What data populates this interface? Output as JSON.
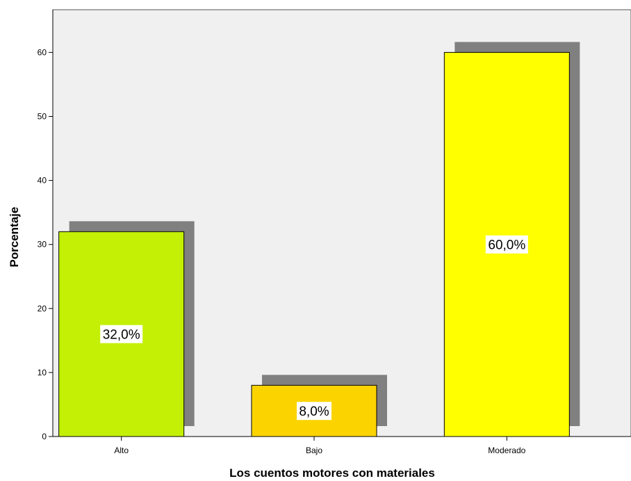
{
  "chart_data": {
    "type": "bar",
    "title": "",
    "xlabel": "Los cuentos motores con materiales",
    "ylabel": "Porcentaje",
    "categories": [
      "Alto",
      "Bajo",
      "Moderado"
    ],
    "values": [
      32,
      8,
      60
    ],
    "data_labels": [
      "32,0%",
      "8,0%",
      "60,0%"
    ],
    "colors": [
      "#c3f005",
      "#fbd400",
      "#ffff00"
    ],
    "shadow_color": "#808080",
    "plot_background": "#f0f0f0",
    "ylim": [
      0,
      65
    ],
    "yticks": [
      0,
      10,
      20,
      30,
      40,
      50,
      60
    ],
    "grid": false,
    "legend": "none"
  }
}
